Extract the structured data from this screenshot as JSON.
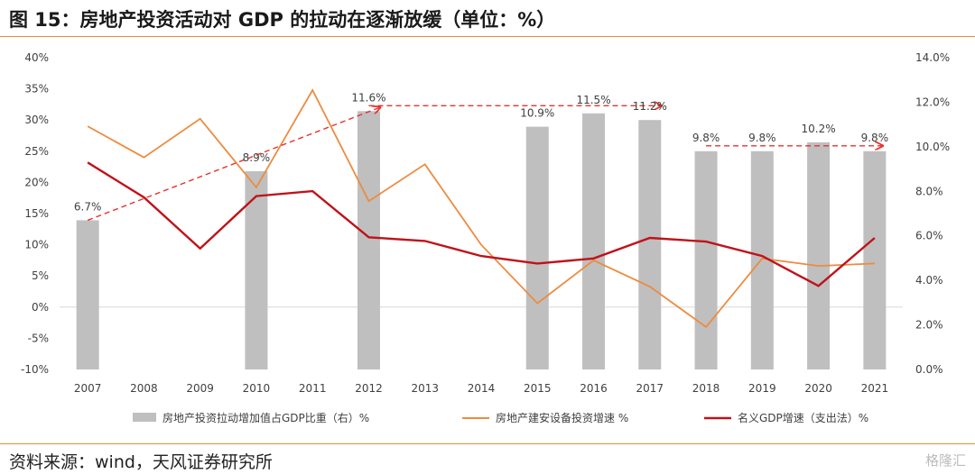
{
  "header": {
    "title": "图 15：房地产投资活动对 GDP 的拉动在逐渐放缓（单位：%）"
  },
  "footer": {
    "source": "资料来源：wind，天风证券研究所",
    "watermark": "格隆汇"
  },
  "colors": {
    "bar": "#bfbfbf",
    "equipment_line": "#ed8b3f",
    "gdp_line": "#c0121a",
    "trend_arrow": "#e8322e",
    "rule": "#e38b3a"
  },
  "chart_data": {
    "type": "bar+line",
    "categories": [
      "2007",
      "2008",
      "2009",
      "2010",
      "2011",
      "2012",
      "2013",
      "2014",
      "2015",
      "2016",
      "2017",
      "2018",
      "2019",
      "2020",
      "2021"
    ],
    "y_left": {
      "ylim": [
        -10,
        40
      ],
      "ticks": [
        "-10%",
        "-5%",
        "0%",
        "5%",
        "10%",
        "15%",
        "20%",
        "25%",
        "30%",
        "35%",
        "40%"
      ]
    },
    "y_right": {
      "ylim": [
        0,
        14
      ],
      "ticks": [
        "0.0%",
        "2.0%",
        "4.0%",
        "6.0%",
        "8.0%",
        "10.0%",
        "12.0%",
        "14.0%"
      ]
    },
    "series": [
      {
        "name": "房地产投资拉动增加值占GDP比重（右）%",
        "kind": "bar",
        "axis": "right",
        "values": [
          6.7,
          null,
          null,
          8.9,
          null,
          11.6,
          null,
          null,
          10.9,
          11.5,
          11.2,
          9.8,
          9.8,
          10.2,
          9.8
        ],
        "labels": [
          "6.7%",
          null,
          null,
          "8.9%",
          null,
          "11.6%",
          null,
          null,
          "10.9%",
          "11.5%",
          "11.2%",
          "9.8%",
          "9.8%",
          "10.2%",
          "9.8%"
        ]
      },
      {
        "name": "房地产建安设备投资增速 %",
        "kind": "line",
        "axis": "left",
        "values": [
          29,
          24,
          30.2,
          19.2,
          34.8,
          17,
          22.9,
          10,
          0.6,
          7.5,
          3.3,
          -3.2,
          7.8,
          6.6,
          7
        ]
      },
      {
        "name": "名义GDP增速（支出法）%",
        "kind": "line",
        "axis": "left",
        "values": [
          23.2,
          17.6,
          9.4,
          17.8,
          18.6,
          11.2,
          10.6,
          8.2,
          7.0,
          7.8,
          11.1,
          10.5,
          8.2,
          3.4,
          11.1
        ]
      }
    ],
    "trend_arrows": [
      {
        "from": "2007",
        "to": "2012",
        "from_value": 6.7,
        "to_value": 11.6
      },
      {
        "from": "2012",
        "to": "2017",
        "from_value": 11.6,
        "to_value": 11.6
      },
      {
        "from": "2018",
        "to": "2021",
        "from_value": 9.8,
        "to_value": 9.8
      }
    ],
    "legend_position": "bottom"
  }
}
